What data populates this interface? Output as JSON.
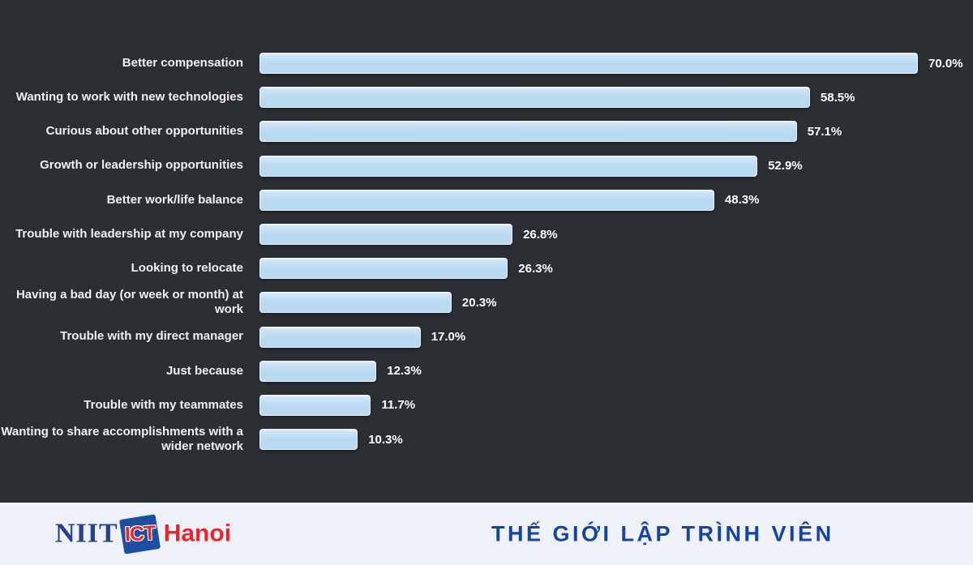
{
  "chart_data": {
    "type": "bar",
    "orientation": "horizontal",
    "title": "",
    "xlabel": "",
    "ylabel": "",
    "xlim": [
      0,
      70
    ],
    "grid": false,
    "legend_position": "none",
    "categories": [
      "Better compensation",
      "Wanting to work with new technologies",
      "Curious about other opportunities",
      "Growth or leadership opportunities",
      "Better work/life balance",
      "Trouble with leadership at my company",
      "Looking to relocate",
      "Having a bad day (or week or month) at work",
      "Trouble with my direct manager",
      "Just because",
      "Trouble with my teammates",
      "Wanting to share accomplishments with a wider network"
    ],
    "values": [
      70.0,
      58.5,
      57.1,
      52.9,
      48.3,
      26.8,
      26.3,
      20.3,
      17.0,
      12.3,
      11.7,
      10.3
    ],
    "value_labels": [
      "70.0%",
      "58.5%",
      "57.1%",
      "52.9%",
      "48.3%",
      "26.8%",
      "26.3%",
      "20.3%",
      "17.0%",
      "12.3%",
      "11.7%",
      "10.3%"
    ],
    "bar_color": "#b9d9f1"
  },
  "footer": {
    "logo": {
      "niit": "NIIT",
      "ict": "ICT",
      "hanoi": "Hanoi"
    },
    "slogan": "THẾ GIỚI LẬP TRÌNH VIÊN"
  },
  "colors": {
    "background": "#2b2e33",
    "bar_fill": "#b9d9f1",
    "bar_fill_top": "#d3e7f8",
    "bar_border": "#e3f1fb",
    "label_text": "#f0f0f0",
    "value_text": "#ffffff",
    "footer_bg": "#eef1f8",
    "slogan_text": "#16439c",
    "logo_blue": "#27408f",
    "logo_red": "#e6262b",
    "logo_square_bg": "#1c4fa1"
  }
}
